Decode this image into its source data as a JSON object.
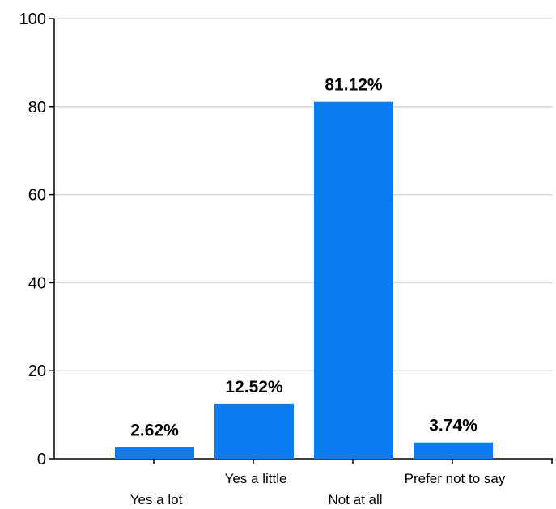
{
  "chart_data": {
    "type": "bar",
    "title": "",
    "xlabel": "",
    "ylabel": "",
    "categories": [
      "Yes a lot",
      "Yes a little",
      "Not at all",
      "Prefer not to say"
    ],
    "values": [
      2.62,
      12.52,
      81.12,
      3.74
    ],
    "value_labels": [
      "2.62%",
      "12.52%",
      "81.12%",
      "3.74%"
    ],
    "ylim": [
      0,
      100
    ],
    "yticks": [
      0,
      20,
      40,
      60,
      80,
      100
    ],
    "ytick_labels": [
      "0",
      "20",
      "40",
      "60",
      "80",
      "100"
    ],
    "grid": true,
    "legend": "none",
    "colors": {
      "bar": "#0a7cf4",
      "grid": "#d9d9d9",
      "axis": "#000000"
    }
  }
}
